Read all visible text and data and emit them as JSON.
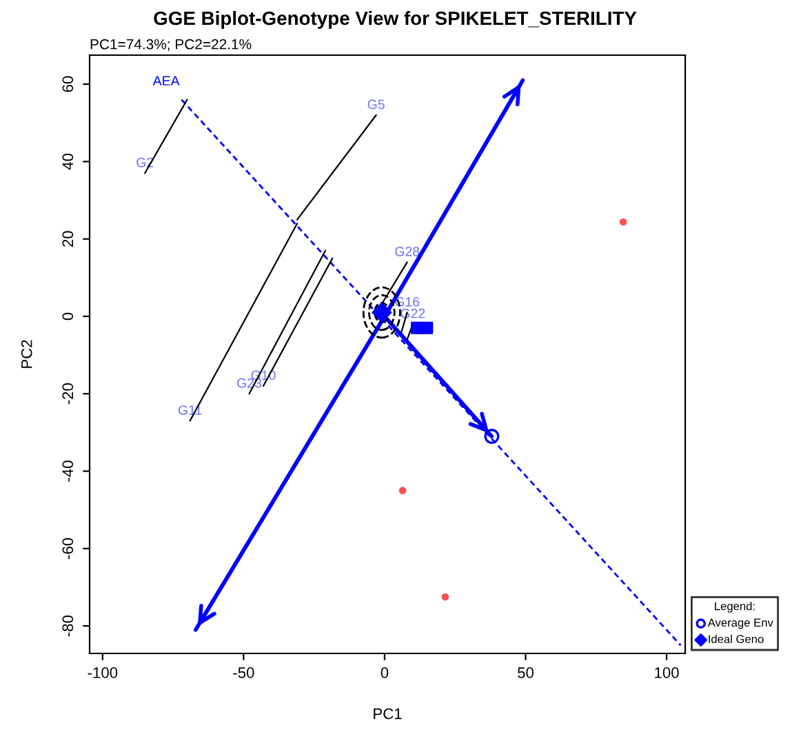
{
  "chart_data": {
    "type": "scatter",
    "title": "GGE Biplot-Genotype View for SPIKELET_STERILITY",
    "subtitle": "PC1=74.3%; PC2=22.1%",
    "xlabel": "PC1",
    "ylabel": "PC2",
    "legend_title": "Legend:",
    "xlim": [
      -104.6,
      106.6
    ],
    "ylim": [
      -87.1,
      67.5
    ],
    "xticks": [
      -100,
      -50,
      0,
      50,
      100
    ],
    "yticks": [
      -80,
      -60,
      -40,
      -20,
      0,
      20,
      40,
      60
    ],
    "grid": false,
    "legend": "bottom right",
    "series": [
      {
        "type": "line",
        "color": "#0000ff",
        "line_style": "dashed",
        "x": [
          -72,
          105
        ],
        "values": [
          56,
          -85
        ]
      },
      {
        "type": "line",
        "color": "#0000ff",
        "line_style": "solid",
        "x": [
          0,
          49
        ],
        "values": [
          0,
          61
        ]
      },
      {
        "type": "line",
        "color": "#0000ff",
        "line_style": "solid",
        "x": [
          0,
          -67
        ],
        "values": [
          0,
          -81
        ]
      },
      {
        "type": "line",
        "color": "#0000ff",
        "line_style": "solid",
        "x": [
          0,
          38
        ],
        "values": [
          0,
          -31
        ]
      },
      {
        "type": "line",
        "color": "#000000",
        "x": [
          -85,
          -70
        ],
        "values": [
          37,
          56
        ]
      },
      {
        "type": "line",
        "color": "#000000",
        "x": [
          -3,
          -31
        ],
        "values": [
          52,
          25
        ]
      },
      {
        "type": "line",
        "color": "#000000",
        "x": [
          -69,
          -31
        ],
        "values": [
          -27,
          24
        ]
      },
      {
        "type": "line",
        "color": "#000000",
        "x": [
          -48,
          -21
        ],
        "values": [
          -20,
          17
        ]
      },
      {
        "type": "line",
        "color": "#000000",
        "x": [
          -43,
          -18.5
        ],
        "values": [
          -18,
          15
        ]
      },
      {
        "type": "line",
        "color": "#000000",
        "x": [
          8,
          -2
        ],
        "values": [
          14,
          2
        ]
      },
      {
        "type": "line",
        "color": "#000000",
        "x": [
          8,
          6
        ],
        "values": [
          1,
          -4
        ]
      },
      {
        "type": "line",
        "color": "#000000",
        "x": [
          10,
          8
        ],
        "values": [
          -2,
          -6
        ]
      },
      {
        "color": "#ff5050",
        "marker": "circle",
        "x": [
          84.6,
          6.4,
          21.5
        ],
        "values": [
          24.4,
          -45,
          -72.5
        ]
      },
      {
        "color": "#0000ff",
        "marker": "square",
        "x": [
          11.5,
          15
        ],
        "values": [
          -3,
          -3
        ]
      },
      {
        "name": "Average Env",
        "color": "#0000ff",
        "marker": "circle",
        "x": [
          38
        ],
        "values": [
          -31
        ]
      },
      {
        "name": "Ideal Geno",
        "color": "#0000ff",
        "marker": "diamond",
        "x": [
          -1
        ],
        "values": [
          1
        ]
      }
    ],
    "annotations": [
      {
        "text": "AEA",
        "x": -72,
        "y": 56
      },
      {
        "text": "G2",
        "x": -85,
        "y": 37
      },
      {
        "text": "G5",
        "x": -3,
        "y": 52
      },
      {
        "text": "G11",
        "x": -69,
        "y": -27
      },
      {
        "text": "G23",
        "x": -48,
        "y": -20
      },
      {
        "text": "G10",
        "x": -43,
        "y": -18
      },
      {
        "text": "G28",
        "x": 8,
        "y": 14
      },
      {
        "text": "G16",
        "x": 8,
        "y": 1
      },
      {
        "text": "G22",
        "x": 10,
        "y": -2
      }
    ]
  }
}
